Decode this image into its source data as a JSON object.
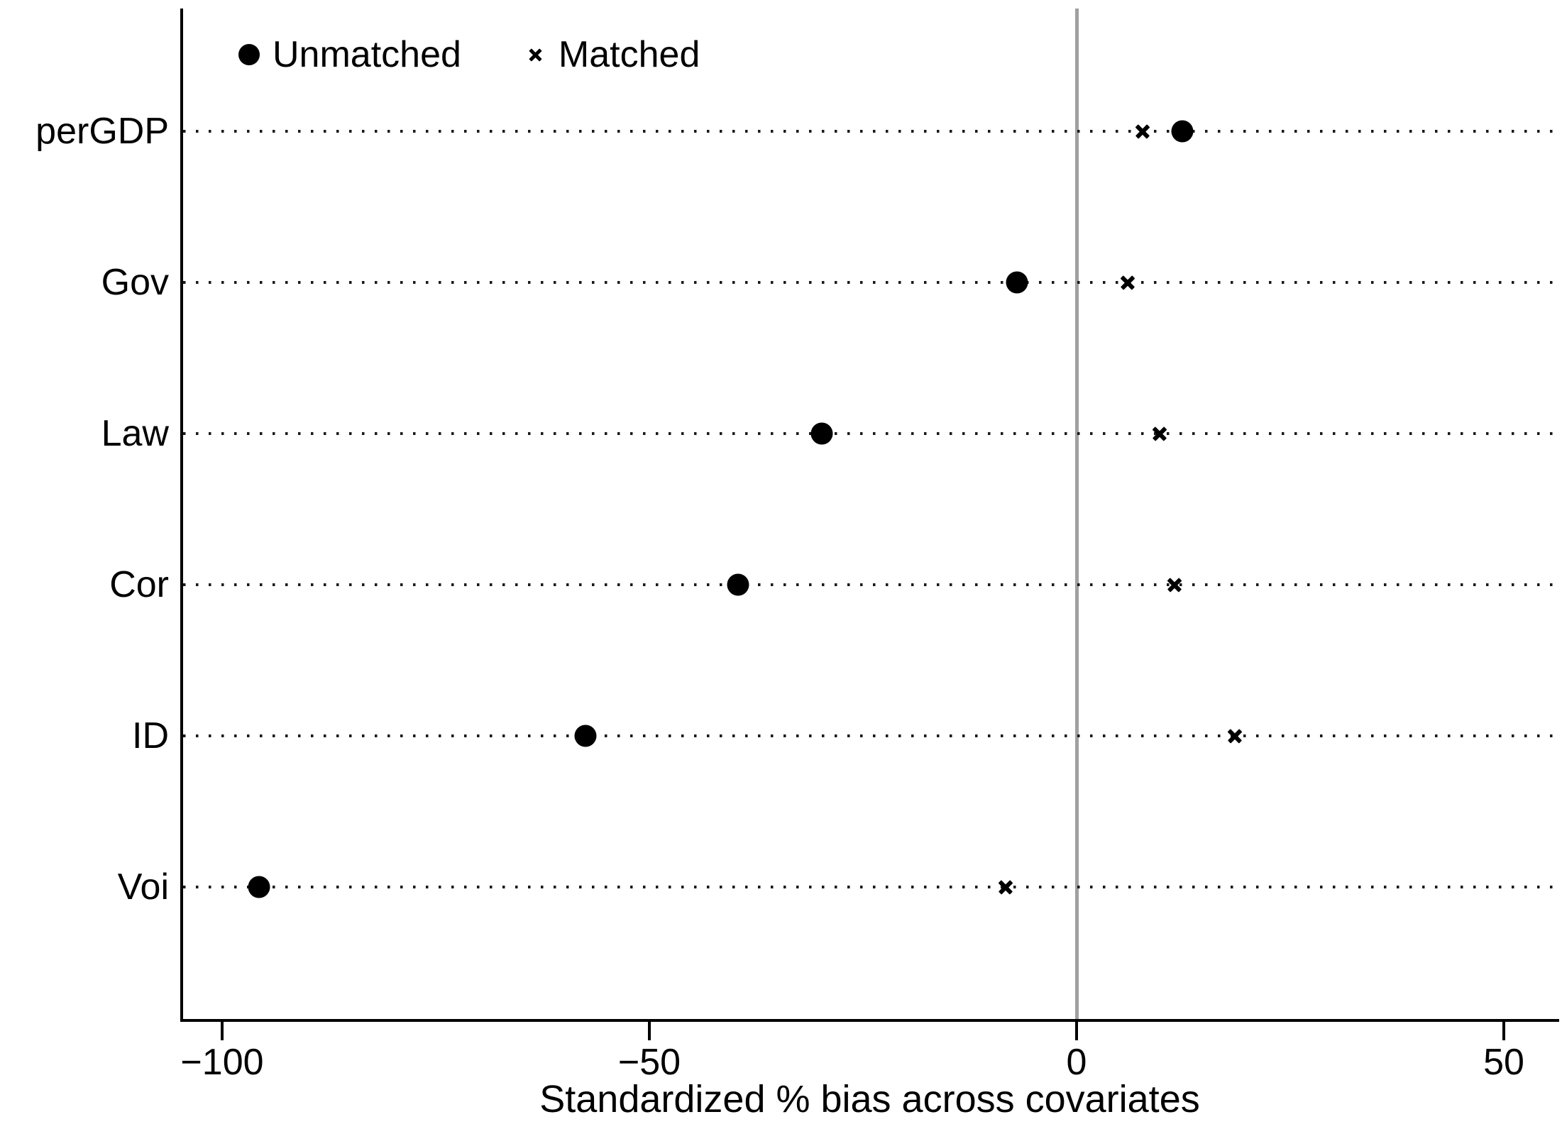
{
  "figure": {
    "background_color": "#ffffff",
    "marker_color": "#000000",
    "zero_line_color": "#a0a0a0",
    "axis_color": "#000000"
  },
  "legend": {
    "items": [
      {
        "label": "Unmatched",
        "marker": "circle"
      },
      {
        "label": "Matched",
        "marker": "x"
      }
    ]
  },
  "axis": {
    "title": "Standardized % bias across covariates",
    "tick_labels": [
      "−100",
      "−50",
      "0",
      "50"
    ]
  },
  "chart_data": {
    "type": "scatter",
    "subtype": "horizontal-dot-plot",
    "title": "",
    "xlabel": "Standardized % bias across covariates",
    "ylabel": "",
    "categories": [
      "perGDP",
      "Gov",
      "Law",
      "Cor",
      "ID",
      "Voi"
    ],
    "series": [
      {
        "name": "Unmatched",
        "marker": "circle",
        "values": [
          12.4,
          -7.0,
          -29.8,
          -39.6,
          -57.5,
          -95.7
        ]
      },
      {
        "name": "Matched",
        "marker": "x",
        "values": [
          7.7,
          6.0,
          9.7,
          11.5,
          18.5,
          -8.3
        ]
      }
    ],
    "x_ticks": [
      -100,
      -50,
      0,
      50
    ],
    "xlim": [
      -104.7,
      56.3
    ],
    "reference_line_x": 0,
    "grid": "dotted horizontal line per category",
    "legend_position": "top-left-inside"
  }
}
